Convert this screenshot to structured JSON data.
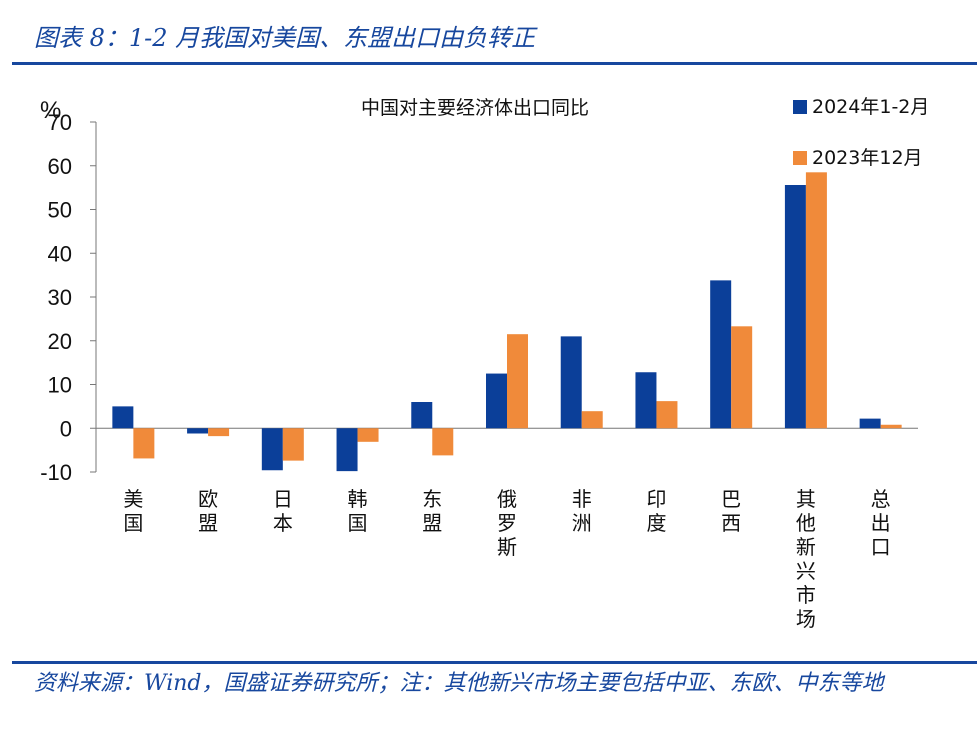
{
  "figure": {
    "title": "图表 8：1-2 月我国对美国、东盟出口由负转正",
    "source_note": "资料来源：Wind，国盛证券研究所；注：其他新兴市场主要包括中亚、东欧、中东等地"
  },
  "chart_data": {
    "type": "bar",
    "title": "中国对主要经济体出口同比",
    "ylabel": "%",
    "xlabel": "",
    "ylim": [
      -10,
      70
    ],
    "yticks": [
      -10,
      0,
      10,
      20,
      30,
      40,
      50,
      60,
      70
    ],
    "categories": [
      "美国",
      "欧盟",
      "日本",
      "韩国",
      "东盟",
      "俄罗斯",
      "非洲",
      "印度",
      "巴西",
      "其他新兴市场",
      "总出口"
    ],
    "series": [
      {
        "name": "2024年1-2月",
        "color": "#0b3f99",
        "values": [
          5.0,
          -1.2,
          -9.6,
          -9.8,
          6.0,
          12.5,
          21.0,
          12.8,
          33.8,
          55.6,
          2.2
        ]
      },
      {
        "name": "2023年12月",
        "color": "#f08a3a",
        "values": [
          -6.9,
          -1.8,
          -7.4,
          -3.1,
          -6.2,
          21.5,
          3.9,
          6.2,
          23.3,
          58.5,
          0.8
        ]
      }
    ],
    "grid": false,
    "legend_position": "top-right"
  }
}
